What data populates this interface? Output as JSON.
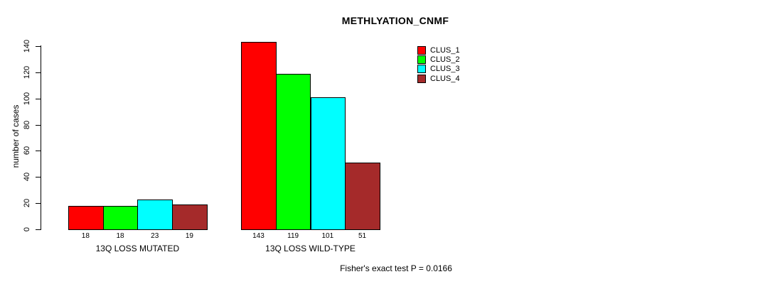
{
  "chart_data": {
    "type": "bar",
    "title": "METHLYATION_CNMF",
    "ylabel": "number of cases",
    "categories": [
      "13Q LOSS MUTATED",
      "13Q LOSS WILD-TYPE"
    ],
    "series": [
      {
        "name": "CLUS_1",
        "color": "#FF0000",
        "values": [
          18,
          143
        ]
      },
      {
        "name": "CLUS_2",
        "color": "#00FF00",
        "values": [
          18,
          119
        ]
      },
      {
        "name": "CLUS_3",
        "color": "#00FFFF",
        "values": [
          23,
          101
        ]
      },
      {
        "name": "CLUS_4",
        "color": "#A52A2A",
        "values": [
          19,
          51
        ]
      }
    ],
    "bar_value_labels": [
      [
        "18",
        "18",
        "23",
        "19"
      ],
      [
        "143",
        "119",
        "101",
        "51"
      ]
    ],
    "yticks": [
      0,
      20,
      40,
      60,
      80,
      100,
      120,
      140
    ],
    "ylim": [
      0,
      140
    ],
    "grid": false,
    "legend_position": "top-right",
    "annotation": "Fisher's exact test P = 0.0166"
  },
  "colors": {
    "axis": "#000000",
    "background": "#FFFFFF",
    "clus_1": "#FF0000",
    "clus_2": "#00FF00",
    "clus_3": "#00FFFF",
    "clus_4": "#A52A2A"
  }
}
